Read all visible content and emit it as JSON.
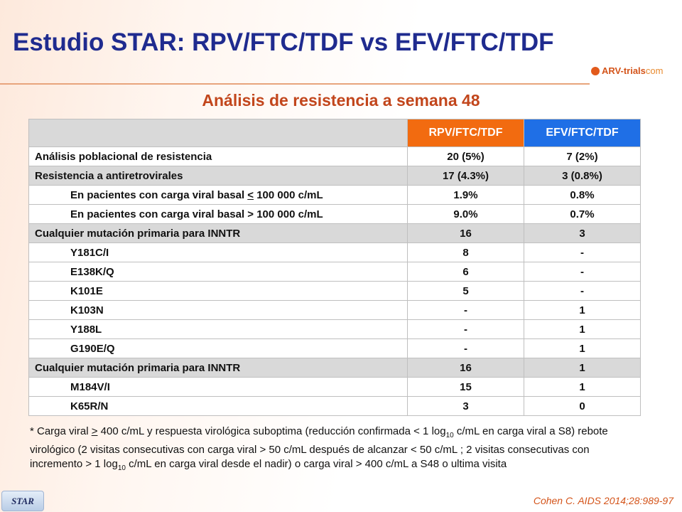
{
  "header": {
    "title": "Estudio STAR: RPV/FTC/TDF vs EFV/FTC/TDF",
    "logo": {
      "name": "ARV-trials",
      "suffix": "com"
    }
  },
  "subtitle": "Análisis  de resistencia a semana 48",
  "table": {
    "columns": [
      "",
      "RPV/FTC/TDF",
      "EFV/FTC/TDF"
    ],
    "rows": [
      [
        "Análisis poblacional de resistencia",
        "20 (5%)",
        "7 (2%)"
      ],
      [
        "Resistencia a antiretrovirales",
        "17 (4.3%)",
        "3 (0.8%)"
      ],
      [
        [
          "En pacientes con carga viral basal ",
          "<",
          " 100 000 c/mL"
        ],
        "1.9%",
        "0.8%"
      ],
      [
        "En pacientes con  carga viral basal > 100 000 c/mL",
        "9.0%",
        "0.7%"
      ],
      [
        "Cualquier mutación primaria para INNTR",
        "16",
        "3"
      ],
      [
        "Y181C/I",
        "8",
        "-"
      ],
      [
        "E138K/Q",
        "6",
        "-"
      ],
      [
        "K101E",
        "5",
        "-"
      ],
      [
        "K103N",
        "-",
        "1"
      ],
      [
        "Y188L",
        "-",
        "1"
      ],
      [
        "G190E/Q",
        "-",
        "1"
      ],
      [
        "Cualquier mutación primaria para INNTR",
        "16",
        "1"
      ],
      [
        "M184V/I",
        "15",
        "1"
      ],
      [
        "K65R/N",
        "3",
        "0"
      ]
    ]
  },
  "footnote": [
    "* Carga viral ",
    ">",
    " 400 c/mL y  respuesta virológica suboptima (reducción confirmada < 1 log",
    "10",
    " c/mL en carga viral a S8) rebote virológico (2 visitas consecutivas con carga viral > 50 c/mL después de alcanzar < 50 c/mL ; 2 visitas consecutivas con  incremento > 1 log",
    "10",
    " c/mL en carga viral desde el nadir) o carga viral > 400 c/mL a S48 o ultima visita"
  ],
  "citation": "Cohen C. AIDS 2014;28:989-97",
  "badge": "STAR"
}
